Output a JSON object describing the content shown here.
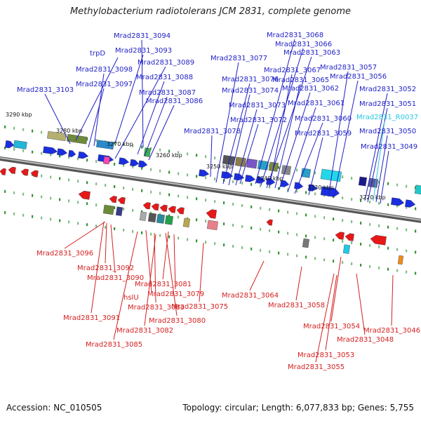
{
  "title": "Methylobacterium radiotolerans JCM 2831, complete genome",
  "footer": {
    "accession": "Accession: NC_010505",
    "summary": "Topology: circular; Length: 6,077,833 bp; Genes: 5,755"
  },
  "colors": {
    "forward_label": "#1f1fc6",
    "reverse_label": "#d42020",
    "rna_label": "#22c8e0",
    "forward_gene": "#1a2fe0",
    "reverse_gene": "#e81818",
    "backbone": "#8a8a8a"
  },
  "scale_labels": [
    "3290 kbp",
    "3280 kbp",
    "3270 kbp",
    "3260 kbp",
    "3250 kbp",
    "3240 kbp",
    "3230 kbp",
    "3220 kbp"
  ],
  "top_labels": [
    "Mrad2831_3094",
    "trpD",
    "Mrad2831_3093",
    "Mrad2831_3098",
    "Mrad2831_3089",
    "Mrad2831_3097",
    "Mrad2831_3088",
    "Mrad2831_3103",
    "Mrad2831_3087",
    "Mrad2831_3086",
    "Mrad2831_3077",
    "Mrad2831_3076",
    "Mrad2831_3074",
    "Mrad2831_3073",
    "Mrad2831_3072",
    "Mrad2831_3078",
    "Mrad2831_3068",
    "Mrad2831_3066",
    "Mrad2831_3063",
    "Mrad2831_3067",
    "Mrad2831_3065",
    "Mrad2831_3062",
    "Mrad2831_3061",
    "Mrad2831_3060",
    "Mrad2831_3059",
    "Mrad2831_3057",
    "Mrad2831_3056",
    "Mrad2831_3052",
    "Mrad2831_3051",
    "Mrad2831_R0037",
    "Mrad2831_3050",
    "Mrad2831_3049"
  ],
  "bottom_labels": [
    "Mrad2831_3096",
    "Mrad2831_3092",
    "Mrad2831_3090",
    "Mrad2831_3081",
    "Mrad2831_3079",
    "hslU",
    "Mrad2831_3083",
    "Mrad2831_3075",
    "Mrad2831_3091",
    "Mrad2831_3080",
    "Mrad2831_3082",
    "Mrad2831_3085",
    "Mrad2831_3064",
    "Mrad2831_3058",
    "Mrad2831_3054",
    "Mrad2831_3046",
    "Mrad2831_3048",
    "Mrad2831_3053",
    "Mrad2831_3055"
  ]
}
